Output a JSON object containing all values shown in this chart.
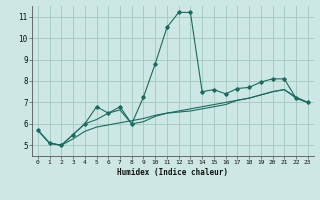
{
  "xlabel": "Humidex (Indice chaleur)",
  "bg_color": "#cde8e4",
  "grid_color": "#a0c8c0",
  "line_color": "#1a6b60",
  "xlim": [
    -0.5,
    23.5
  ],
  "ylim": [
    4.5,
    11.5
  ],
  "yticks": [
    5,
    6,
    7,
    8,
    9,
    10,
    11
  ],
  "xticks": [
    0,
    1,
    2,
    3,
    4,
    5,
    6,
    7,
    8,
    9,
    10,
    11,
    12,
    13,
    14,
    15,
    16,
    17,
    18,
    19,
    20,
    21,
    22,
    23
  ],
  "line1_x": [
    0,
    1,
    2,
    3,
    4,
    5,
    6,
    7,
    8,
    9,
    10,
    11,
    12,
    13,
    14,
    15,
    16,
    17,
    18,
    19,
    20,
    21,
    22,
    23
  ],
  "line1_y": [
    5.7,
    5.1,
    5.0,
    5.5,
    6.0,
    6.8,
    6.5,
    6.8,
    6.0,
    7.25,
    8.8,
    10.5,
    11.2,
    11.2,
    7.5,
    7.6,
    7.4,
    7.65,
    7.7,
    7.95,
    8.1,
    8.1,
    7.2,
    7.0
  ],
  "line2_x": [
    0,
    1,
    2,
    3,
    4,
    5,
    6,
    7,
    8,
    9,
    10,
    11,
    12,
    13,
    14,
    15,
    16,
    17,
    18,
    19,
    20,
    21,
    22,
    23
  ],
  "line2_y": [
    5.7,
    5.1,
    5.0,
    5.5,
    6.0,
    6.2,
    6.5,
    6.65,
    6.0,
    6.1,
    6.35,
    6.5,
    6.55,
    6.6,
    6.7,
    6.8,
    6.9,
    7.1,
    7.2,
    7.35,
    7.5,
    7.6,
    7.2,
    7.0
  ],
  "line3_x": [
    0,
    1,
    2,
    3,
    4,
    5,
    6,
    7,
    8,
    9,
    10,
    11,
    12,
    13,
    14,
    15,
    16,
    17,
    18,
    19,
    20,
    21,
    22,
    23
  ],
  "line3_y": [
    5.7,
    5.1,
    5.0,
    5.3,
    5.65,
    5.85,
    5.95,
    6.05,
    6.15,
    6.25,
    6.4,
    6.5,
    6.6,
    6.7,
    6.8,
    6.9,
    7.0,
    7.1,
    7.2,
    7.35,
    7.5,
    7.6,
    7.25,
    7.0
  ]
}
